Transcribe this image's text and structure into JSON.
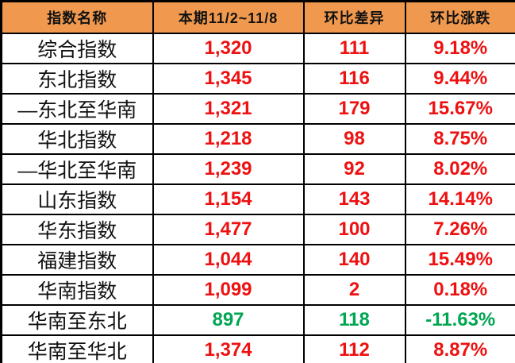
{
  "chart_data": {
    "type": "table",
    "columns": [
      {
        "label": "指数名称"
      },
      {
        "label": "本期11/2~11/8"
      },
      {
        "label": "环比差异"
      },
      {
        "label": "环比涨跌"
      }
    ],
    "rows": [
      {
        "name": "综合指数",
        "current": "1,320",
        "diff": "111",
        "change": "9.18%",
        "value_color": "up"
      },
      {
        "name": "东北指数",
        "current": "1,345",
        "diff": "116",
        "change": "9.44%",
        "value_color": "up"
      },
      {
        "name": "—东北至华南",
        "current": "1,321",
        "diff": "179",
        "change": "15.67%",
        "value_color": "up"
      },
      {
        "name": "华北指数",
        "current": "1,218",
        "diff": "98",
        "change": "8.75%",
        "value_color": "up"
      },
      {
        "name": "—华北至华南",
        "current": "1,239",
        "diff": "92",
        "change": "8.02%",
        "value_color": "up"
      },
      {
        "name": "山东指数",
        "current": "1,154",
        "diff": "143",
        "change": "14.14%",
        "value_color": "up"
      },
      {
        "name": "华东指数",
        "current": "1,477",
        "diff": "100",
        "change": "7.26%",
        "value_color": "up"
      },
      {
        "name": "福建指数",
        "current": "1,044",
        "diff": "140",
        "change": "15.49%",
        "value_color": "up"
      },
      {
        "name": "华南指数",
        "current": "1,099",
        "diff": "2",
        "change": "0.18%",
        "value_color": "up"
      },
      {
        "name": "华南至东北",
        "current": "897",
        "diff": "118",
        "change": "-11.63%",
        "value_color": "down"
      },
      {
        "name": "华南至华北",
        "current": "1,374",
        "diff": "112",
        "change": "8.87%",
        "value_color": "up"
      }
    ],
    "colors": {
      "header_bg": "#F0994E",
      "header_text": "#111111",
      "label": "#111111",
      "up": "#EE1111",
      "down": "#00A651",
      "border": "#000000"
    },
    "layout": {
      "legend": "none",
      "grid": "all-borders"
    }
  }
}
